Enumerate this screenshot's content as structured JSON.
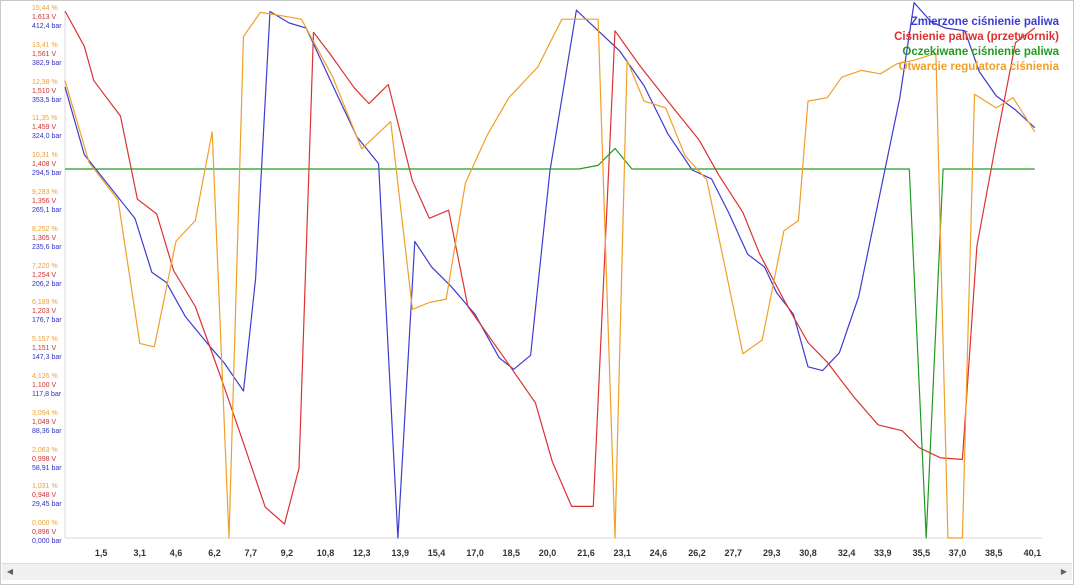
{
  "chart_data": {
    "type": "line",
    "x_ticks": [
      "1,5",
      "3,1",
      "4,6",
      "6,2",
      "7,7",
      "9,2",
      "10,8",
      "12,3",
      "13,9",
      "15,4",
      "17,0",
      "18,5",
      "20,0",
      "21,6",
      "23,1",
      "24,6",
      "26,2",
      "27,7",
      "29,3",
      "30,8",
      "32,4",
      "33,9",
      "35,5",
      "37,0",
      "38,5",
      "40,1"
    ],
    "xlim": [
      0,
      40.5
    ],
    "y_axes": [
      {
        "name": "percent",
        "color": "#f0a030",
        "ticks": [
          "15,44 %",
          "13,41 %",
          "12,38 %",
          "11,35 %",
          "10,31 %",
          "9,283 %",
          "8,252 %",
          "7,220 %",
          "6,189 %",
          "5,157 %",
          "4,126 %",
          "3,094 %",
          "2,063 %",
          "1,031 %",
          "0,000 %"
        ]
      },
      {
        "name": "volts",
        "color": "#d03030",
        "ticks": [
          "1,613 V",
          "1,561 V",
          "1,510 V",
          "1,459 V",
          "1,408 V",
          "1,356 V",
          "1,305 V",
          "1,254 V",
          "1,203 V",
          "1,151 V",
          "1,100 V",
          "1,049 V",
          "0,998 V",
          "0,948 V",
          "0,896 V"
        ]
      },
      {
        "name": "bar",
        "color": "#3030c8",
        "ticks": [
          "412,4 bar",
          "382,9 bar",
          "353,5 bar",
          "324,0 bar",
          "294,5 bar",
          "265,1 bar",
          "235,6 bar",
          "206,2 bar",
          "176,7 bar",
          "147,3 bar",
          "117,8 bar",
          "88,36 bar",
          "58,91 bar",
          "29,45 bar",
          "0,000 bar"
        ]
      }
    ],
    "series": [
      {
        "name": "Zmierzone ciśnienie paliwa",
        "color": "#3c3cd2",
        "axis": "bar",
        "points": [
          [
            0,
            353
          ],
          [
            0.8,
            300
          ],
          [
            2.9,
            250
          ],
          [
            3.6,
            208
          ],
          [
            4.2,
            200
          ],
          [
            5.0,
            173
          ],
          [
            6.0,
            150
          ],
          [
            6.6,
            137
          ],
          [
            7.4,
            115
          ],
          [
            7.9,
            203
          ],
          [
            8.5,
            412
          ],
          [
            9.3,
            403
          ],
          [
            10.0,
            399
          ],
          [
            11.3,
            346
          ],
          [
            12.1,
            314
          ],
          [
            13.0,
            293
          ],
          [
            13.8,
            0
          ],
          [
            14.5,
            232
          ],
          [
            15.2,
            212
          ],
          [
            16.0,
            197
          ],
          [
            17.0,
            175
          ],
          [
            18.0,
            141
          ],
          [
            18.6,
            132
          ],
          [
            19.3,
            143
          ],
          [
            20.1,
            287
          ],
          [
            21.2,
            413
          ],
          [
            22.1,
            397
          ],
          [
            23.0,
            381
          ],
          [
            24.0,
            354
          ],
          [
            25.0,
            316
          ],
          [
            26.0,
            288
          ],
          [
            26.8,
            281
          ],
          [
            27.5,
            255
          ],
          [
            28.3,
            222
          ],
          [
            29.0,
            212
          ],
          [
            29.5,
            192
          ],
          [
            30.2,
            175
          ],
          [
            30.8,
            134
          ],
          [
            31.4,
            131
          ],
          [
            32.1,
            145
          ],
          [
            32.9,
            189
          ],
          [
            33.7,
            262
          ],
          [
            34.6,
            344
          ],
          [
            35.2,
            419
          ],
          [
            35.9,
            404
          ],
          [
            36.5,
            399
          ],
          [
            37.3,
            397
          ],
          [
            37.9,
            365
          ],
          [
            38.6,
            346
          ],
          [
            39.4,
            335
          ],
          [
            40.2,
            321
          ]
        ]
      },
      {
        "name": "Ciśnienie paliwa (przetwornik)",
        "color": "#dc3232",
        "axis": "volts",
        "points": [
          [
            0,
            1.613
          ],
          [
            0.8,
            1.565
          ],
          [
            1.2,
            1.518
          ],
          [
            2.3,
            1.47
          ],
          [
            3.0,
            1.357
          ],
          [
            3.8,
            1.337
          ],
          [
            4.5,
            1.26
          ],
          [
            5.4,
            1.211
          ],
          [
            6.5,
            1.111
          ],
          [
            7.4,
            1.025
          ],
          [
            8.3,
            0.938
          ],
          [
            9.1,
            0.915
          ],
          [
            9.7,
            0.991
          ],
          [
            10.3,
            1.584
          ],
          [
            11.0,
            1.554
          ],
          [
            12.0,
            1.508
          ],
          [
            12.6,
            1.487
          ],
          [
            13.4,
            1.513
          ],
          [
            14.4,
            1.382
          ],
          [
            15.1,
            1.331
          ],
          [
            15.9,
            1.342
          ],
          [
            16.7,
            1.211
          ],
          [
            18.1,
            1.146
          ],
          [
            19.5,
            1.08
          ],
          [
            20.2,
            1.0
          ],
          [
            21.0,
            0.939
          ],
          [
            21.9,
            0.939
          ],
          [
            22.8,
            1.586
          ],
          [
            23.8,
            1.54
          ],
          [
            24.9,
            1.494
          ],
          [
            26.3,
            1.437
          ],
          [
            27.1,
            1.39
          ],
          [
            28.1,
            1.339
          ],
          [
            28.8,
            1.282
          ],
          [
            29.8,
            1.22
          ],
          [
            30.8,
            1.162
          ],
          [
            31.6,
            1.135
          ],
          [
            32.7,
            1.088
          ],
          [
            33.7,
            1.05
          ],
          [
            34.7,
            1.042
          ],
          [
            35.4,
            1.019
          ],
          [
            36.3,
            1.005
          ],
          [
            37.2,
            1.003
          ],
          [
            37.8,
            1.293
          ],
          [
            38.6,
            1.435
          ],
          [
            39.4,
            1.57
          ],
          [
            40.2,
            1.59
          ]
        ]
      },
      {
        "name": "Oczekiwane ciśnienie paliwa",
        "color": "#239b23",
        "axis": "volts",
        "points": [
          [
            0,
            1.398
          ],
          [
            21.3,
            1.398
          ],
          [
            22.1,
            1.403
          ],
          [
            22.8,
            1.426
          ],
          [
            23.5,
            1.398
          ],
          [
            35.0,
            1.398
          ],
          [
            35.7,
            0.896
          ],
          [
            36.4,
            1.398
          ],
          [
            40.2,
            1.398
          ]
        ]
      },
      {
        "name": "Otwarcie regulatora ciśnienia",
        "color": "#f0a028",
        "axis": "percent",
        "points": [
          [
            0,
            13.4
          ],
          [
            1.0,
            11.0
          ],
          [
            2.2,
            9.9
          ],
          [
            3.1,
            5.7
          ],
          [
            3.7,
            5.6
          ],
          [
            4.6,
            8.7
          ],
          [
            5.4,
            9.3
          ],
          [
            6.1,
            11.9
          ],
          [
            6.8,
            0.0
          ],
          [
            7.4,
            14.7
          ],
          [
            8.1,
            15.4
          ],
          [
            9.0,
            15.3
          ],
          [
            9.8,
            15.2
          ],
          [
            11.1,
            13.5
          ],
          [
            12.3,
            11.4
          ],
          [
            13.5,
            12.2
          ],
          [
            14.4,
            6.7
          ],
          [
            15.1,
            6.9
          ],
          [
            15.8,
            7.0
          ],
          [
            16.6,
            10.4
          ],
          [
            17.5,
            11.8
          ],
          [
            18.4,
            12.9
          ],
          [
            19.6,
            13.8
          ],
          [
            20.6,
            15.2
          ],
          [
            21.6,
            15.2
          ],
          [
            22.1,
            15.2
          ],
          [
            22.8,
            0.0
          ],
          [
            23.3,
            14.0
          ],
          [
            24.0,
            12.8
          ],
          [
            24.9,
            12.6
          ],
          [
            25.7,
            11.2
          ],
          [
            26.6,
            10.5
          ],
          [
            27.4,
            7.8
          ],
          [
            28.1,
            5.4
          ],
          [
            28.9,
            5.8
          ],
          [
            29.8,
            9.0
          ],
          [
            30.4,
            9.3
          ],
          [
            30.8,
            12.8
          ],
          [
            31.6,
            12.9
          ],
          [
            32.2,
            13.5
          ],
          [
            33.0,
            13.7
          ],
          [
            33.8,
            13.6
          ],
          [
            34.5,
            13.9
          ],
          [
            35.2,
            14.0
          ],
          [
            36.1,
            14.2
          ],
          [
            36.6,
            0.0
          ],
          [
            37.2,
            0.0
          ],
          [
            37.7,
            13.0
          ],
          [
            38.6,
            12.6
          ],
          [
            39.3,
            12.9
          ],
          [
            40.2,
            11.9
          ]
        ]
      }
    ],
    "legend": "top-right"
  }
}
